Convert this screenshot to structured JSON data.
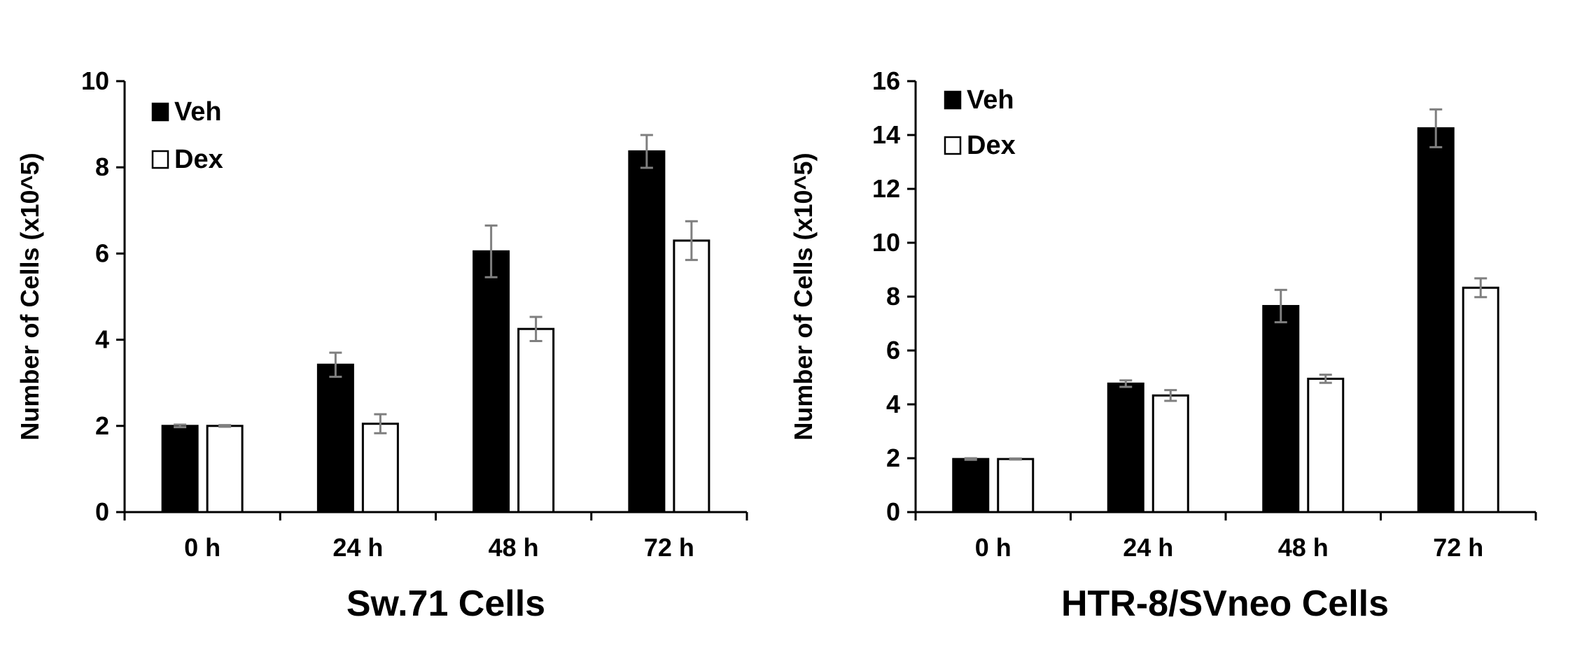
{
  "chart_data": [
    {
      "type": "bar",
      "title": "Sw.71 Cells",
      "ylabel": "Number of Cells (x10^5)",
      "xlabel": "",
      "categories": [
        "0 h",
        "24 h",
        "48 h",
        "72 h"
      ],
      "ylim": [
        0,
        10
      ],
      "yticks": [
        0,
        2,
        4,
        6,
        8,
        10
      ],
      "legend_position": "top-left",
      "series": [
        {
          "name": "Veh",
          "color": "#000000",
          "values": [
            2.0,
            3.42,
            6.05,
            8.37
          ],
          "errors": [
            0.03,
            0.28,
            0.6,
            0.38
          ]
        },
        {
          "name": "Dex",
          "color": "#ffffff",
          "values": [
            2.0,
            2.05,
            4.25,
            6.3
          ],
          "errors": [
            0.02,
            0.22,
            0.28,
            0.45
          ]
        }
      ]
    },
    {
      "type": "bar",
      "title": "HTR-8/SVneo Cells",
      "ylabel": "Number of Cells (x10^5)",
      "xlabel": "",
      "categories": [
        "0 h",
        "24 h",
        "48 h",
        "72 h"
      ],
      "ylim": [
        0,
        16
      ],
      "yticks": [
        0,
        2,
        4,
        6,
        8,
        10,
        12,
        14,
        16
      ],
      "legend_position": "top-left",
      "series": [
        {
          "name": "Veh",
          "color": "#000000",
          "values": [
            1.97,
            4.77,
            7.65,
            14.25
          ],
          "errors": [
            0.03,
            0.12,
            0.6,
            0.7
          ]
        },
        {
          "name": "Dex",
          "color": "#ffffff",
          "values": [
            1.97,
            4.33,
            4.95,
            8.33
          ],
          "errors": [
            0.02,
            0.2,
            0.15,
            0.35
          ]
        }
      ]
    }
  ]
}
